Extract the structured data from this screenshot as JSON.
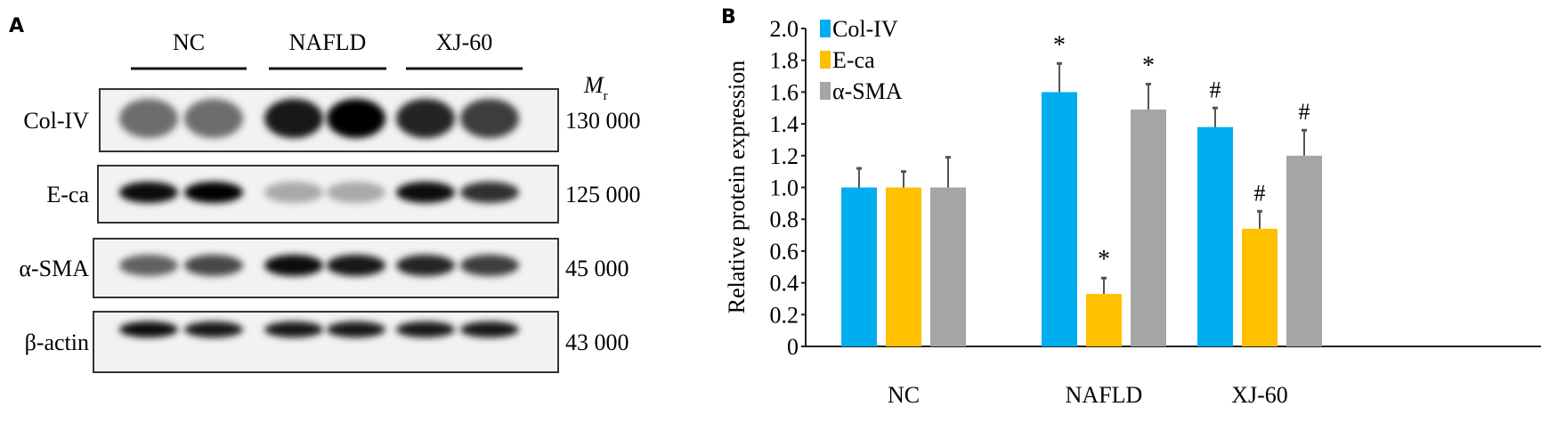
{
  "panel_a": {
    "letter": "A",
    "groups": [
      "NC",
      "NAFLD",
      "XJ-60"
    ],
    "mr_label": "M",
    "mr_sub": "r",
    "rows": [
      {
        "label": "Col-IV",
        "mr": "130 000"
      },
      {
        "label": "E-ca",
        "mr": "125 000"
      },
      {
        "label": "α-SMA",
        "mr": "45 000"
      },
      {
        "label": "β-actin",
        "mr": "43 000"
      }
    ]
  },
  "chart_data": {
    "panel_letter": "B",
    "type": "bar",
    "title": "",
    "xlabel": "",
    "ylabel": "Relative protein expression",
    "ylim": [
      0,
      2.0
    ],
    "yticks": [
      "0",
      "0.2",
      "0.4",
      "0.6",
      "0.8",
      "1.0",
      "1.2",
      "1.4",
      "1.6",
      "1.8",
      "2.0"
    ],
    "categories": [
      "NC",
      "NAFLD",
      "XJ-60"
    ],
    "legend_position": "top-left",
    "series": [
      {
        "name": "Col-IV",
        "color": "#00AEEF",
        "values": [
          1.0,
          1.6,
          1.38
        ],
        "errors": [
          0.12,
          0.18,
          0.12
        ],
        "annotations": [
          "",
          "*",
          "#"
        ]
      },
      {
        "name": "E-ca",
        "color": "#FFC000",
        "values": [
          1.0,
          0.33,
          0.74
        ],
        "errors": [
          0.1,
          0.1,
          0.11
        ],
        "annotations": [
          "",
          "*",
          "#"
        ]
      },
      {
        "name": "α-SMA",
        "color": "#A5A5A5",
        "values": [
          1.0,
          1.49,
          1.2
        ],
        "errors": [
          0.19,
          0.16,
          0.16
        ],
        "annotations": [
          "",
          "*",
          "#"
        ]
      }
    ]
  }
}
